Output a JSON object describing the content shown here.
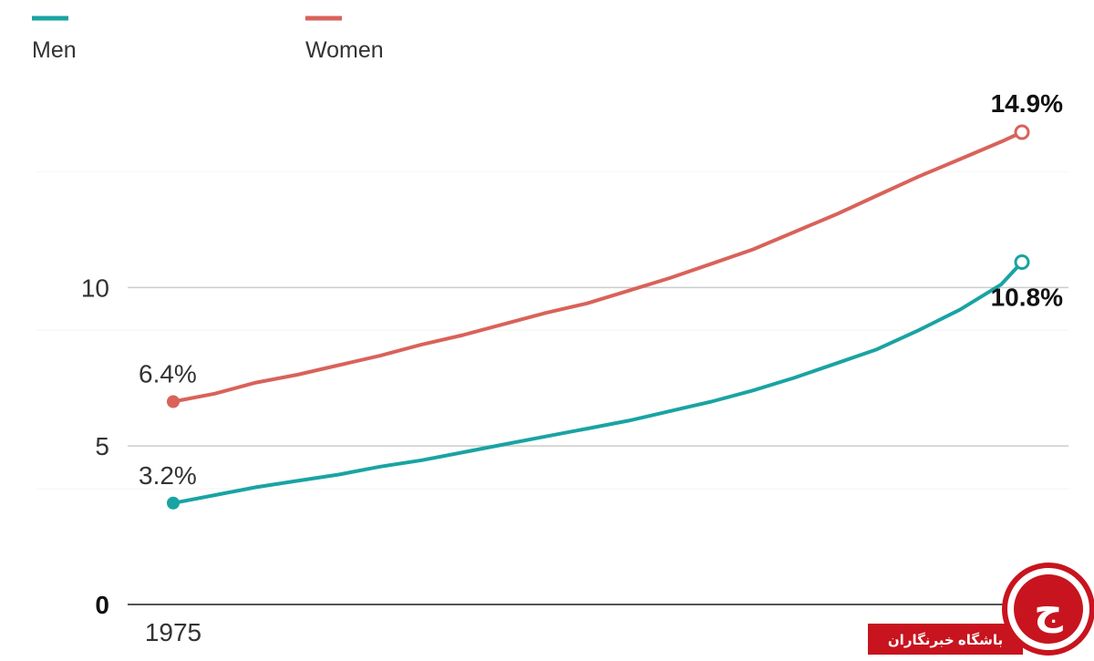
{
  "chart_data": {
    "type": "line",
    "x_range": [
      1975,
      2016
    ],
    "ylim": [
      0,
      15
    ],
    "y_ticks": [
      {
        "value": 0,
        "label": "0"
      },
      {
        "value": 5,
        "label": "5"
      },
      {
        "value": 10,
        "label": "10"
      }
    ],
    "x_ticks": [
      {
        "value": 1975,
        "label": "1975"
      }
    ],
    "grid": "horizontal",
    "legend_position": "top-left",
    "series": [
      {
        "name": "Men",
        "color": "#1aa3a3",
        "start_label": "3.2%",
        "end_label": "10.8%",
        "points": [
          [
            1975,
            3.2
          ],
          [
            1977,
            3.45
          ],
          [
            1979,
            3.7
          ],
          [
            1981,
            3.9
          ],
          [
            1983,
            4.1
          ],
          [
            1985,
            4.35
          ],
          [
            1987,
            4.55
          ],
          [
            1989,
            4.8
          ],
          [
            1991,
            5.05
          ],
          [
            1993,
            5.3
          ],
          [
            1995,
            5.55
          ],
          [
            1997,
            5.8
          ],
          [
            1999,
            6.1
          ],
          [
            2001,
            6.4
          ],
          [
            2003,
            6.75
          ],
          [
            2005,
            7.15
          ],
          [
            2007,
            7.6
          ],
          [
            2009,
            8.05
          ],
          [
            2011,
            8.65
          ],
          [
            2013,
            9.3
          ],
          [
            2015,
            10.1
          ],
          [
            2016,
            10.8
          ]
        ]
      },
      {
        "name": "Women",
        "color": "#d9625a",
        "start_label": "6.4%",
        "end_label": "14.9%",
        "points": [
          [
            1975,
            6.4
          ],
          [
            1977,
            6.65
          ],
          [
            1979,
            7.0
          ],
          [
            1981,
            7.25
          ],
          [
            1983,
            7.55
          ],
          [
            1985,
            7.85
          ],
          [
            1987,
            8.2
          ],
          [
            1989,
            8.5
          ],
          [
            1991,
            8.85
          ],
          [
            1993,
            9.2
          ],
          [
            1995,
            9.5
          ],
          [
            1997,
            9.9
          ],
          [
            1999,
            10.3
          ],
          [
            2001,
            10.75
          ],
          [
            2003,
            11.2
          ],
          [
            2005,
            11.75
          ],
          [
            2007,
            12.3
          ],
          [
            2009,
            12.9
          ],
          [
            2011,
            13.5
          ],
          [
            2013,
            14.05
          ],
          [
            2015,
            14.6
          ],
          [
            2016,
            14.9
          ]
        ]
      }
    ]
  },
  "watermark": {
    "text": "باشگاه خبرنگاران",
    "logo_glyph": "ج",
    "color": "#c8141e"
  }
}
